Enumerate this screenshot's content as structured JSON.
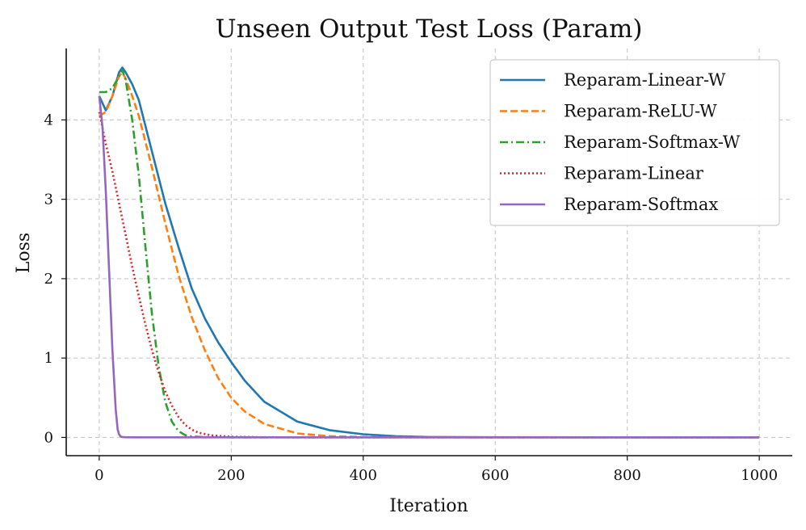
{
  "chart_data": {
    "type": "line",
    "title": "Unseen Output Test Loss (Param)",
    "xlabel": "Iteration",
    "ylabel": "Loss",
    "xlim": [
      -50,
      1050
    ],
    "ylim": [
      -0.23,
      4.9
    ],
    "xticks": [
      0,
      200,
      400,
      600,
      800,
      1000
    ],
    "yticks": [
      0,
      1,
      2,
      3,
      4
    ],
    "xtick_labels": [
      "0",
      "200",
      "400",
      "600",
      "800",
      "1000"
    ],
    "ytick_labels": [
      "0",
      "1",
      "2",
      "3",
      "4"
    ],
    "grid": true,
    "legend_location": "top-right",
    "series": [
      {
        "name": "Reparam-Linear-W",
        "color": "#1f77b4",
        "style": "solid",
        "x": [
          0,
          10,
          20,
          30,
          35,
          40,
          50,
          60,
          80,
          100,
          120,
          140,
          160,
          180,
          200,
          220,
          250,
          300,
          350,
          400,
          450,
          500,
          600,
          800,
          1000
        ],
        "y": [
          4.3,
          4.12,
          4.3,
          4.6,
          4.66,
          4.6,
          4.45,
          4.25,
          3.6,
          2.95,
          2.4,
          1.88,
          1.5,
          1.2,
          0.95,
          0.72,
          0.45,
          0.2,
          0.09,
          0.04,
          0.015,
          0.005,
          0.002,
          0.001,
          0.001
        ]
      },
      {
        "name": "Reparam-ReLU-W",
        "color": "#ff7f0e",
        "style": "dashed",
        "x": [
          0,
          10,
          20,
          30,
          35,
          40,
          50,
          60,
          80,
          100,
          120,
          140,
          160,
          180,
          200,
          220,
          250,
          300,
          350,
          400,
          500,
          600,
          800,
          1000
        ],
        "y": [
          4.05,
          4.1,
          4.3,
          4.55,
          4.6,
          4.52,
          4.3,
          4.05,
          3.4,
          2.7,
          2.05,
          1.52,
          1.1,
          0.75,
          0.5,
          0.33,
          0.17,
          0.05,
          0.015,
          0.005,
          0.002,
          0.001,
          0.001,
          0.001
        ]
      },
      {
        "name": "Reparam-Softmax-W",
        "color": "#2ca02c",
        "style": "dashdot",
        "x": [
          0,
          10,
          20,
          30,
          35,
          40,
          50,
          60,
          70,
          80,
          90,
          100,
          110,
          120,
          130,
          140,
          160,
          200,
          300,
          400,
          600,
          800,
          1000
        ],
        "y": [
          4.35,
          4.35,
          4.4,
          4.55,
          4.63,
          4.5,
          4.0,
          3.3,
          2.4,
          1.55,
          0.9,
          0.45,
          0.2,
          0.08,
          0.03,
          0.012,
          0.004,
          0.001,
          0.001,
          0.001,
          0.001,
          0.001,
          0.001
        ]
      },
      {
        "name": "Reparam-Linear",
        "color": "#d62728",
        "style": "dotted",
        "x": [
          0,
          10,
          20,
          30,
          40,
          50,
          60,
          70,
          80,
          90,
          100,
          110,
          120,
          130,
          140,
          150,
          170,
          200,
          250,
          300,
          400,
          600,
          800,
          1000
        ],
        "y": [
          4.1,
          3.7,
          3.35,
          2.95,
          2.55,
          2.15,
          1.78,
          1.42,
          1.1,
          0.82,
          0.58,
          0.4,
          0.26,
          0.16,
          0.1,
          0.06,
          0.025,
          0.008,
          0.002,
          0.001,
          0.001,
          0.001,
          0.001,
          0.001
        ]
      },
      {
        "name": "Reparam-Softmax",
        "color": "#9467bd",
        "style": "solid",
        "x": [
          0,
          5,
          10,
          15,
          20,
          25,
          28,
          30,
          32,
          35,
          40,
          60,
          100,
          200,
          400,
          600,
          800,
          1000
        ],
        "y": [
          4.3,
          3.9,
          3.1,
          2.1,
          1.1,
          0.35,
          0.1,
          0.04,
          0.015,
          0.005,
          0.002,
          0.001,
          0.001,
          0.001,
          0.001,
          0.001,
          0.001,
          0.001
        ]
      }
    ]
  }
}
